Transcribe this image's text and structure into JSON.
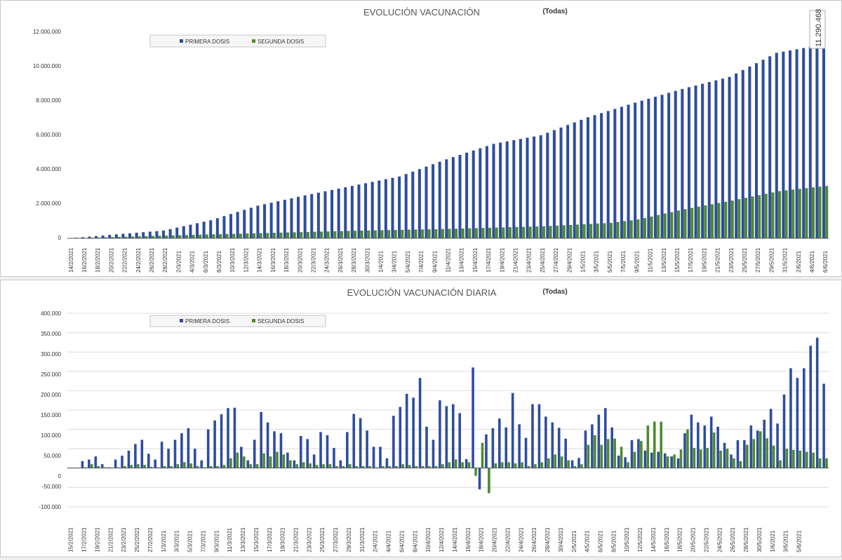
{
  "colors": {
    "primera": "#2e4d9e",
    "segunda": "#4e8a2e",
    "grid": "#dcdcdc",
    "axis": "#555555"
  },
  "chart_data": [
    {
      "type": "bar",
      "title": "EVOLUCIÓN VACUNACIÓN",
      "filter_label": "(Todas)",
      "legend": [
        "PRIMERA DOSIS",
        "SEGUNDA DOSIS"
      ],
      "legend_position": "top-left",
      "ylim": [
        0,
        12000000
      ],
      "yticks": [
        "0",
        "2.000.000",
        "4.000.000",
        "6.000.000",
        "8.000.000",
        "10.000.000",
        "12.000.000"
      ],
      "yvalues": [
        0,
        2000000,
        4000000,
        6000000,
        8000000,
        10000000,
        12000000
      ],
      "start_date": "2021-02-14",
      "xtick_labels": [
        "14/2/2021",
        "16/2/2021",
        "18/2/2021",
        "20/2/2021",
        "22/2/2021",
        "24/2/2021",
        "26/2/2021",
        "28/2/2021",
        "2/3/2021",
        "4/3/2021",
        "6/3/2021",
        "8/3/2021",
        "10/3/2021",
        "12/3/2021",
        "14/3/2021",
        "16/3/2021",
        "18/3/2021",
        "20/3/2021",
        "22/3/2021",
        "24/3/2021",
        "26/3/2021",
        "28/3/2021",
        "30/3/2021",
        "1/4/2021",
        "3/4/2021",
        "5/4/2021",
        "7/4/2021",
        "9/4/2021",
        "11/4/2021",
        "13/4/2021",
        "15/4/2021",
        "17/4/2021",
        "19/4/2021",
        "21/4/2021",
        "23/4/2021",
        "25/4/2021",
        "27/4/2021",
        "29/4/2021",
        "1/5/2021",
        "3/5/2021",
        "5/5/2021",
        "7/5/2021",
        "9/5/2021",
        "11/5/2021",
        "13/5/2021",
        "15/5/2021",
        "17/5/2021",
        "19/5/2021",
        "21/5/2021",
        "23/5/2021",
        "25/5/2021",
        "27/5/2021",
        "29/5/2021",
        "31/5/2021",
        "2/6/2021",
        "4/6/2021",
        "6/6/2021"
      ],
      "series": [
        {
          "name": "PRIMERA DOSIS",
          "anchors": [
            [
              0,
              2000
            ],
            [
              7,
              230000
            ],
            [
              14,
              450000
            ],
            [
              21,
              1050000
            ],
            [
              28,
              1900000
            ],
            [
              35,
              2500000
            ],
            [
              42,
              3050000
            ],
            [
              49,
              3600000
            ],
            [
              56,
              4600000
            ],
            [
              63,
              5500000
            ],
            [
              70,
              6000000
            ],
            [
              77,
              7050000
            ],
            [
              84,
              7900000
            ],
            [
              91,
              8700000
            ],
            [
              98,
              9400000
            ],
            [
              105,
              10800000
            ],
            [
              112,
              11290468
            ]
          ]
        },
        {
          "name": "SEGUNDA DOSIS",
          "anchors": [
            [
              0,
              1000
            ],
            [
              14,
              160000
            ],
            [
              28,
              300000
            ],
            [
              42,
              440000
            ],
            [
              56,
              550000
            ],
            [
              70,
              700000
            ],
            [
              80,
              900000
            ],
            [
              84,
              1100000
            ],
            [
              91,
              1700000
            ],
            [
              98,
              2200000
            ],
            [
              105,
              2750000
            ],
            [
              112,
              3051000
            ]
          ]
        }
      ],
      "last_value_label": "11.290.468"
    },
    {
      "type": "bar",
      "title": "EVOLUCIÓN VACUNACIÓN DIARIA",
      "filter_label": "(Todas)",
      "legend": [
        "PRIMERA DOSIS",
        "SEGUNDA DOSIS"
      ],
      "legend_position": "top-left",
      "ylim": [
        -100000,
        400000
      ],
      "yticks": [
        "-100.000",
        "-50.000",
        "0",
        "50.000",
        "100.000",
        "150.000",
        "200.000",
        "250.000",
        "300.000",
        "350.000",
        "400.000"
      ],
      "yvalues": [
        -100000,
        -50000,
        0,
        50000,
        100000,
        150000,
        200000,
        250000,
        300000,
        350000,
        400000
      ],
      "start_date": "2021-02-15",
      "xtick_labels": [
        "15/2/2021",
        "17/2/2021",
        "19/2/2021",
        "21/2/2021",
        "23/2/2021",
        "25/2/2021",
        "27/2/2021",
        "1/3/2021",
        "3/3/2021",
        "5/3/2021",
        "7/3/2021",
        "9/3/2021",
        "11/3/2021",
        "13/3/2021",
        "15/3/2021",
        "17/3/2021",
        "19/3/2021",
        "21/3/2021",
        "23/3/2021",
        "25/3/2021",
        "27/3/2021",
        "29/3/2021",
        "31/3/2021",
        "2/4/2021",
        "4/4/2021",
        "6/4/2021",
        "8/4/2021",
        "10/4/2021",
        "12/4/2021",
        "14/4/2021",
        "16/4/2021",
        "18/4/2021",
        "20/4/2021",
        "22/4/2021",
        "24/4/2021",
        "26/4/2021",
        "28/4/2021",
        "30/4/2021",
        "2/5/2021",
        "4/5/2021",
        "6/5/2021",
        "8/5/2021",
        "10/5/2021",
        "12/5/2021",
        "14/5/2021",
        "16/5/2021",
        "18/5/2021",
        "20/5/2021",
        "22/5/2021",
        "24/5/2021",
        "26/5/2021",
        "28/5/2021",
        "30/5/2021",
        "1/6/2021",
        "3/6/2021",
        "5/6/2021"
      ],
      "series": [
        {
          "name": "PRIMERA DOSIS",
          "values": [
            1000,
            1000,
            18000,
            22000,
            30000,
            10000,
            2000,
            22000,
            32000,
            45000,
            62000,
            73000,
            37000,
            22000,
            68000,
            50000,
            73000,
            90000,
            103000,
            50000,
            20000,
            100000,
            123000,
            139000,
            155000,
            156000,
            55000,
            20000,
            73000,
            145000,
            118000,
            95000,
            90000,
            40000,
            20000,
            83000,
            75000,
            35000,
            93000,
            85000,
            52000,
            20000,
            93000,
            140000,
            129000,
            97000,
            55000,
            55000,
            25000,
            135000,
            158000,
            192000,
            182000,
            233000,
            107000,
            73000,
            175000,
            160000,
            165000,
            142000,
            23000,
            260000,
            -55000,
            87000,
            103000,
            128000,
            105000,
            194000,
            113000,
            78000,
            165000,
            165000,
            133000,
            118000,
            104000,
            76000,
            20000,
            26000,
            97000,
            113000,
            138000,
            155000,
            105000,
            32000,
            28000,
            72000,
            75000,
            45000,
            40000,
            42000,
            38000,
            30000,
            25000,
            90000,
            138000,
            118000,
            110000,
            133000,
            107000,
            65000,
            35000,
            72000,
            72000,
            110000,
            97000,
            125000,
            153000,
            115000,
            190000,
            258000,
            233000,
            258000,
            316000,
            337000,
            218000
          ]
        },
        {
          "name": "SEGUNDA DOSIS",
          "values": [
            0,
            0,
            2000,
            10000,
            5000,
            2000,
            0,
            2000,
            5000,
            8000,
            10000,
            8000,
            3000,
            2000,
            5000,
            5000,
            10000,
            15000,
            12000,
            5000,
            2000,
            5000,
            5000,
            8000,
            25000,
            40000,
            30000,
            10000,
            10000,
            38000,
            30000,
            42000,
            35000,
            20000,
            10000,
            15000,
            12000,
            8000,
            10000,
            10000,
            5000,
            5000,
            10000,
            5000,
            5000,
            5000,
            2000,
            5000,
            5000,
            5000,
            10000,
            8000,
            5000,
            5000,
            5000,
            5000,
            10000,
            15000,
            22000,
            15000,
            15000,
            -20000,
            65000,
            -65000,
            12000,
            15000,
            15000,
            12000,
            15000,
            5000,
            10000,
            15000,
            25000,
            35000,
            30000,
            20000,
            5000,
            10000,
            60000,
            85000,
            60000,
            75000,
            76000,
            55000,
            15000,
            42000,
            70000,
            110000,
            120000,
            120000,
            30000,
            35000,
            48000,
            100000,
            52000,
            48000,
            52000,
            92000,
            45000,
            50000,
            25000,
            18000,
            60000,
            75000,
            95000,
            77000,
            58000,
            20000,
            50000,
            47000,
            45000,
            42000,
            40000,
            25000,
            25000
          ]
        }
      ]
    }
  ]
}
